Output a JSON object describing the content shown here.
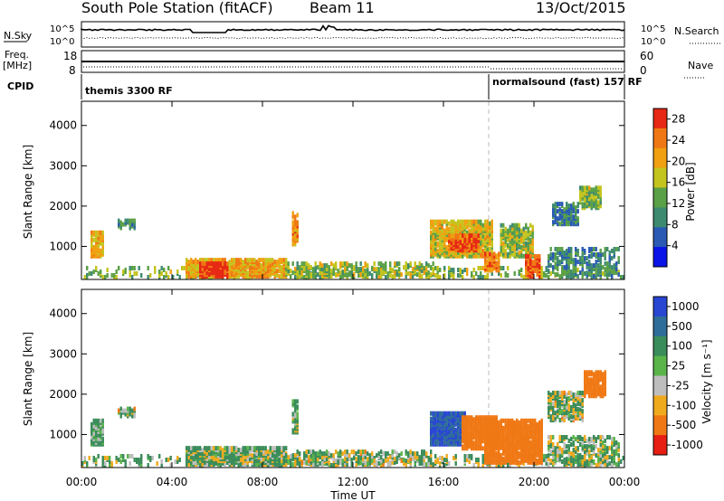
{
  "header": {
    "station_title": "South Pole Station (fitACF)",
    "beam": "Beam 11",
    "date": "13/Oct/2015"
  },
  "top_panels": {
    "nsky_label": "N.Sky",
    "nsky_ticks": [
      "10^5",
      "10^0"
    ],
    "nsearch_label": "N.Search",
    "nsearch_ticks": [
      "10^5",
      "10^0"
    ],
    "freq_label_1": "Freq.",
    "freq_label_2": "[MHz]",
    "freq_ticks": [
      "18",
      "8"
    ],
    "nave_label": "Nave",
    "nave_ticks": [
      "60",
      "0"
    ],
    "cpid_label": "CPID",
    "cpid_mode_1": "themis 3300 RF",
    "cpid_mode_2": "normalsound (fast) 157 RF"
  },
  "chart_data": [
    {
      "type": "heatmap",
      "panel": "power",
      "ylabel": "Slant Range [km]",
      "yticks": [
        "1000",
        "2000",
        "3000",
        "4000"
      ],
      "ylim": [
        180,
        4600
      ],
      "colorbar_label": "Power [dB]",
      "colorbar_ticks": [
        "4",
        "8",
        "12",
        "16",
        "20",
        "24",
        "28"
      ],
      "colorbar_range": [
        0,
        30
      ],
      "colors": [
        "#0a14e6",
        "#2a5ab4",
        "#3d8a70",
        "#5aa046",
        "#c4c41e",
        "#f0a010",
        "#f07814",
        "#e62814"
      ],
      "mode_change_time": "18:00",
      "echo_regions": [
        {
          "t": [
            0.0,
            24.0
          ],
          "r": [
            180,
            420
          ],
          "v": 14,
          "d": 0.28
        },
        {
          "t": [
            4.6,
            9.0
          ],
          "r": [
            200,
            650
          ],
          "v": 20,
          "d": 0.85
        },
        {
          "t": [
            5.2,
            6.4
          ],
          "r": [
            200,
            520
          ],
          "v": 28,
          "d": 0.9
        },
        {
          "t": [
            9.0,
            15.5
          ],
          "r": [
            200,
            520
          ],
          "v": 15,
          "d": 0.45
        },
        {
          "t": [
            0.4,
            0.9
          ],
          "r": [
            700,
            1300
          ],
          "v": 20,
          "d": 0.8
        },
        {
          "t": [
            1.6,
            2.4
          ],
          "r": [
            1400,
            1600
          ],
          "v": 10,
          "d": 0.55
        },
        {
          "t": [
            9.3,
            9.6
          ],
          "r": [
            1000,
            1800
          ],
          "v": 22,
          "d": 0.8
        },
        {
          "t": [
            15.4,
            18.2
          ],
          "r": [
            700,
            1600
          ],
          "v": 18,
          "d": 0.8
        },
        {
          "t": [
            16.2,
            17.6
          ],
          "r": [
            850,
            1250
          ],
          "v": 26,
          "d": 0.9
        },
        {
          "t": [
            17.8,
            18.5
          ],
          "r": [
            350,
            800
          ],
          "v": 24,
          "d": 0.85
        },
        {
          "t": [
            18.5,
            20.0
          ],
          "r": [
            700,
            1500
          ],
          "v": 15,
          "d": 0.6
        },
        {
          "t": [
            19.6,
            20.3
          ],
          "r": [
            200,
            700
          ],
          "v": 26,
          "d": 0.8
        },
        {
          "t": [
            20.8,
            22.0
          ],
          "r": [
            1500,
            2000
          ],
          "v": 9,
          "d": 0.75
        },
        {
          "t": [
            22.0,
            23.0
          ],
          "r": [
            1900,
            2400
          ],
          "v": 14,
          "d": 0.7
        },
        {
          "t": [
            20.6,
            23.8
          ],
          "r": [
            200,
            900
          ],
          "v": 10,
          "d": 0.4
        }
      ]
    },
    {
      "type": "heatmap",
      "panel": "velocity",
      "ylabel": "Slant Range [km]",
      "yticks": [
        "1000",
        "2000",
        "3000",
        "4000"
      ],
      "ylim": [
        180,
        4600
      ],
      "colorbar_label": "Velocity [m s⁻¹]",
      "colorbar_ticks": [
        "1000",
        "500",
        "100",
        "25",
        "-25",
        "-100",
        "-500",
        "-1000"
      ],
      "colorbar_range": [
        -1200,
        1200
      ],
      "colors": [
        "#2846d2",
        "#2e6c9a",
        "#3a8c5a",
        "#5ab44a",
        "#bebebe",
        "#f0aa1e",
        "#f07814",
        "#e61e14"
      ],
      "mode_change_time": "18:00",
      "xlabel": "Time UT",
      "xticks": [
        "00:00",
        "04:00",
        "08:00",
        "12:00",
        "16:00",
        "20:00",
        "00:00"
      ],
      "xlim_hours": [
        0,
        24
      ],
      "echo_regions": [
        {
          "t": [
            0.0,
            24.0
          ],
          "r": [
            180,
            420
          ],
          "v": 60,
          "d": 0.28
        },
        {
          "t": [
            4.6,
            9.0
          ],
          "r": [
            200,
            650
          ],
          "v": 60,
          "d": 0.85
        },
        {
          "t": [
            9.0,
            15.5
          ],
          "r": [
            200,
            520
          ],
          "v": 40,
          "d": 0.45
        },
        {
          "t": [
            0.4,
            0.9
          ],
          "r": [
            700,
            1300
          ],
          "v": 120,
          "d": 0.8
        },
        {
          "t": [
            1.6,
            2.4
          ],
          "r": [
            1400,
            1600
          ],
          "v": 40,
          "d": 0.55
        },
        {
          "t": [
            9.3,
            9.6
          ],
          "r": [
            1000,
            1800
          ],
          "v": 90,
          "d": 0.8
        },
        {
          "t": [
            15.4,
            17.0
          ],
          "r": [
            700,
            1500
          ],
          "v": 700,
          "d": 0.85
        },
        {
          "t": [
            16.8,
            18.4
          ],
          "r": [
            600,
            1400
          ],
          "v": -300,
          "d": 0.85
        },
        {
          "t": [
            17.8,
            20.4
          ],
          "r": [
            250,
            1300
          ],
          "v": -350,
          "d": 0.85
        },
        {
          "t": [
            20.6,
            22.2
          ],
          "r": [
            1300,
            2000
          ],
          "v": 40,
          "d": 0.7
        },
        {
          "t": [
            22.2,
            23.2
          ],
          "r": [
            1900,
            2500
          ],
          "v": -250,
          "d": 0.75
        },
        {
          "t": [
            20.6,
            23.8
          ],
          "r": [
            200,
            900
          ],
          "v": 60,
          "d": 0.45
        }
      ]
    }
  ]
}
